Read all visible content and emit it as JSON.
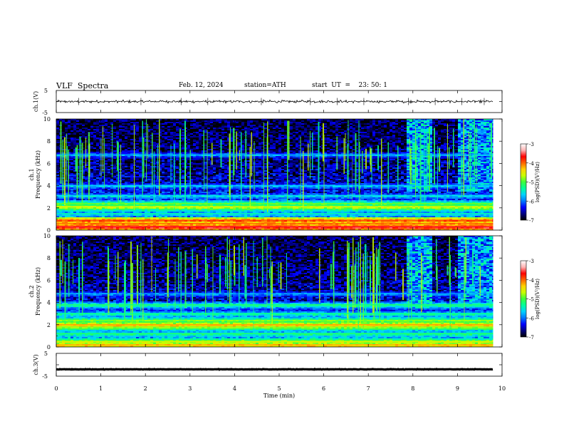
{
  "header": {
    "title": "VLF  Spectra",
    "date": "Feb. 12, 2024",
    "station": "station=ATH",
    "start": "start  UT  =    23: 50: 1"
  },
  "chart_data": [
    {
      "type": "line",
      "title": "",
      "ylabel": "ch.1(V)",
      "ylim": [
        -5,
        5
      ],
      "yticks": [
        "5",
        "-5"
      ],
      "xlim": [
        0,
        10
      ],
      "series": [
        {
          "level": 0.0,
          "noise": 0.45,
          "spike_times_min": [
            0.5,
            1.9,
            2.8,
            3.4,
            4.6,
            5.7,
            6.3,
            6.9,
            7.9,
            8.5,
            9.1,
            9.6
          ],
          "end_min": 9.8
        }
      ]
    },
    {
      "type": "heatmap",
      "title": "",
      "ylabel_lines": [
        "ch.1",
        "Frequency (kHz)"
      ],
      "ylim": [
        0,
        10
      ],
      "yticks": [
        "0",
        "2",
        "4",
        "6",
        "8",
        "10"
      ],
      "xlim": [
        0,
        10
      ],
      "data_end_min": 9.8,
      "colorbar": {
        "label": "log(PSD)(V²/Hz)",
        "range": [
          -7,
          -3
        ],
        "ticks": [
          "-3",
          "-4",
          "-5",
          "-6",
          "-7"
        ]
      },
      "bands_khz": [
        {
          "freq": 0.3,
          "level": -3.6
        },
        {
          "freq": 0.6,
          "level": -4.0
        },
        {
          "freq": 0.9,
          "level": -3.9
        },
        {
          "freq": 1.5,
          "level": -5.4
        },
        {
          "freq": 2.1,
          "level": -4.6
        },
        {
          "freq": 2.4,
          "level": -4.9
        },
        {
          "freq": 3.1,
          "level": -5.6
        },
        {
          "freq": 4.0,
          "level": -5.7
        },
        {
          "freq": 6.8,
          "level": -5.8
        }
      ]
    },
    {
      "type": "heatmap",
      "title": "",
      "ylabel_lines": [
        "ch.2",
        "Frequency (kHz)"
      ],
      "ylim": [
        0,
        10
      ],
      "yticks": [
        "0",
        "2",
        "4",
        "6",
        "8",
        "10"
      ],
      "xlim": [
        0,
        10
      ],
      "data_end_min": 9.8,
      "colorbar": {
        "label": "log(PSD)(V²/Hz)",
        "range": [
          -7,
          -3
        ],
        "ticks": [
          "-3",
          "-4",
          "-5",
          "-6",
          "-7"
        ]
      },
      "bands_khz": [
        {
          "freq": 0.2,
          "level": -4.2
        },
        {
          "freq": 0.5,
          "level": -4.6
        },
        {
          "freq": 1.2,
          "level": -5.2
        },
        {
          "freq": 1.8,
          "level": -4.9
        },
        {
          "freq": 2.0,
          "level": -4.2
        },
        {
          "freq": 2.4,
          "level": -4.8
        },
        {
          "freq": 3.0,
          "level": -5.3
        },
        {
          "freq": 3.8,
          "level": -5.2
        },
        {
          "freq": 4.8,
          "level": -5.8
        }
      ]
    },
    {
      "type": "line",
      "title": "",
      "ylabel": "ch.3(V)",
      "ylim": [
        -5,
        5
      ],
      "yticks": [
        "5",
        "-5"
      ],
      "xlim": [
        0,
        10
      ],
      "xlabel": "Time  (min)",
      "xticks": [
        "0",
        "1",
        "2",
        "3",
        "4",
        "5",
        "6",
        "7",
        "8",
        "9",
        "10"
      ],
      "series": [
        {
          "level": -2.0,
          "noise": 0.08,
          "end_min": 9.8
        }
      ]
    }
  ],
  "colors": {
    "colormap": [
      "#000000",
      "#000080",
      "#0000ff",
      "#0078ff",
      "#00d2ff",
      "#00ff9c",
      "#3cff3c",
      "#c8ff00",
      "#ffd200",
      "#ff6400",
      "#ff0000",
      "#ffb4b4",
      "#ffffff"
    ]
  }
}
